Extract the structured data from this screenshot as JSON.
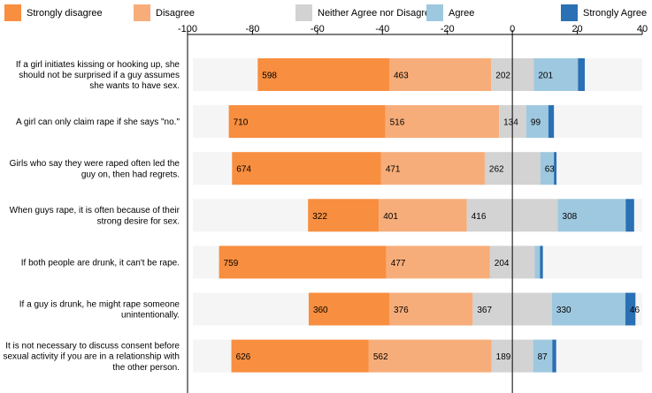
{
  "chart_data": {
    "type": "diverging-stacked-bar",
    "legend": [
      {
        "name": "Strongly disagree",
        "color": "#f88e3f"
      },
      {
        "name": "Disagree",
        "color": "#f7ad79"
      },
      {
        "name": "Neither Agree nor Disagree",
        "color": "#d3d3d3"
      },
      {
        "name": "Agree",
        "color": "#9ec8df"
      },
      {
        "name": "Strongly Agree",
        "color": "#2a70b4"
      }
    ],
    "background_color": "#f5f5f5",
    "xlim": [
      -100,
      40
    ],
    "ticks": [
      -100,
      -80,
      -60,
      -40,
      -20,
      0,
      20,
      40
    ],
    "rows": [
      {
        "question": [
          "If a girl initiates kissing or hooking up, she",
          "should not be surprised if a guy assumes",
          "she wants to have sex."
        ],
        "starts": [
          -78.4,
          -37.9,
          -6.5,
          6.6,
          20.2
        ],
        "ends": [
          -37.9,
          -6.5,
          6.6,
          20.2,
          22.3
        ],
        "labels": [
          "598",
          "463",
          "202",
          "201",
          ""
        ]
      },
      {
        "question": [
          "A girl can only claim rape if she says \"no.\""
        ],
        "starts": [
          -87.3,
          -39.1,
          -4.1,
          4.3,
          11.1
        ],
        "ends": [
          -39.1,
          -4.1,
          4.3,
          11.1,
          12.8
        ],
        "labels": [
          "710",
          "516",
          "134",
          "99",
          ""
        ]
      },
      {
        "question": [
          "Girls who say they were raped often led the",
          "guy on, then had regrets."
        ],
        "starts": [
          -86.3,
          -40.4,
          -8.5,
          8.6,
          12.8
        ],
        "ends": [
          -40.4,
          -8.5,
          8.6,
          12.8,
          13.6
        ],
        "labels": [
          "674",
          "471",
          "262",
          "63",
          ""
        ]
      },
      {
        "question": [
          "When guys rape, it is often because of their",
          "strong desire for sex."
        ],
        "starts": [
          -62.9,
          -41.1,
          -14.0,
          14.0,
          34.9
        ],
        "ends": [
          -41.1,
          -14.0,
          14.0,
          34.9,
          37.5
        ],
        "labels": [
          "322",
          "401",
          "416",
          "308",
          ""
        ]
      },
      {
        "question": [
          "If both people are drunk, it can't be rape."
        ],
        "starts": [
          -90.3,
          -38.8,
          -6.9,
          6.9,
          8.5
        ],
        "ends": [
          -38.8,
          -6.9,
          6.9,
          8.5,
          9.4
        ],
        "labels": [
          "759",
          "477",
          "204",
          "",
          ""
        ]
      },
      {
        "question": [
          "If a guy is drunk, he might rape someone",
          "unintentionally."
        ],
        "starts": [
          -62.7,
          -37.9,
          -12.2,
          12.2,
          34.8
        ],
        "ends": [
          -37.9,
          -12.2,
          12.2,
          34.8,
          37.9
        ],
        "labels": [
          "360",
          "376",
          "367",
          "330",
          "46"
        ]
      },
      {
        "question": [
          "It is not necessary to discuss consent before",
          "sexual activity if you are in a relationship with",
          "the other person."
        ],
        "starts": [
          -86.5,
          -44.2,
          -6.4,
          6.4,
          12.3
        ],
        "ends": [
          -44.2,
          -6.4,
          6.4,
          12.3,
          13.5
        ],
        "labels": [
          "626",
          "562",
          "189",
          "87",
          ""
        ]
      }
    ]
  }
}
